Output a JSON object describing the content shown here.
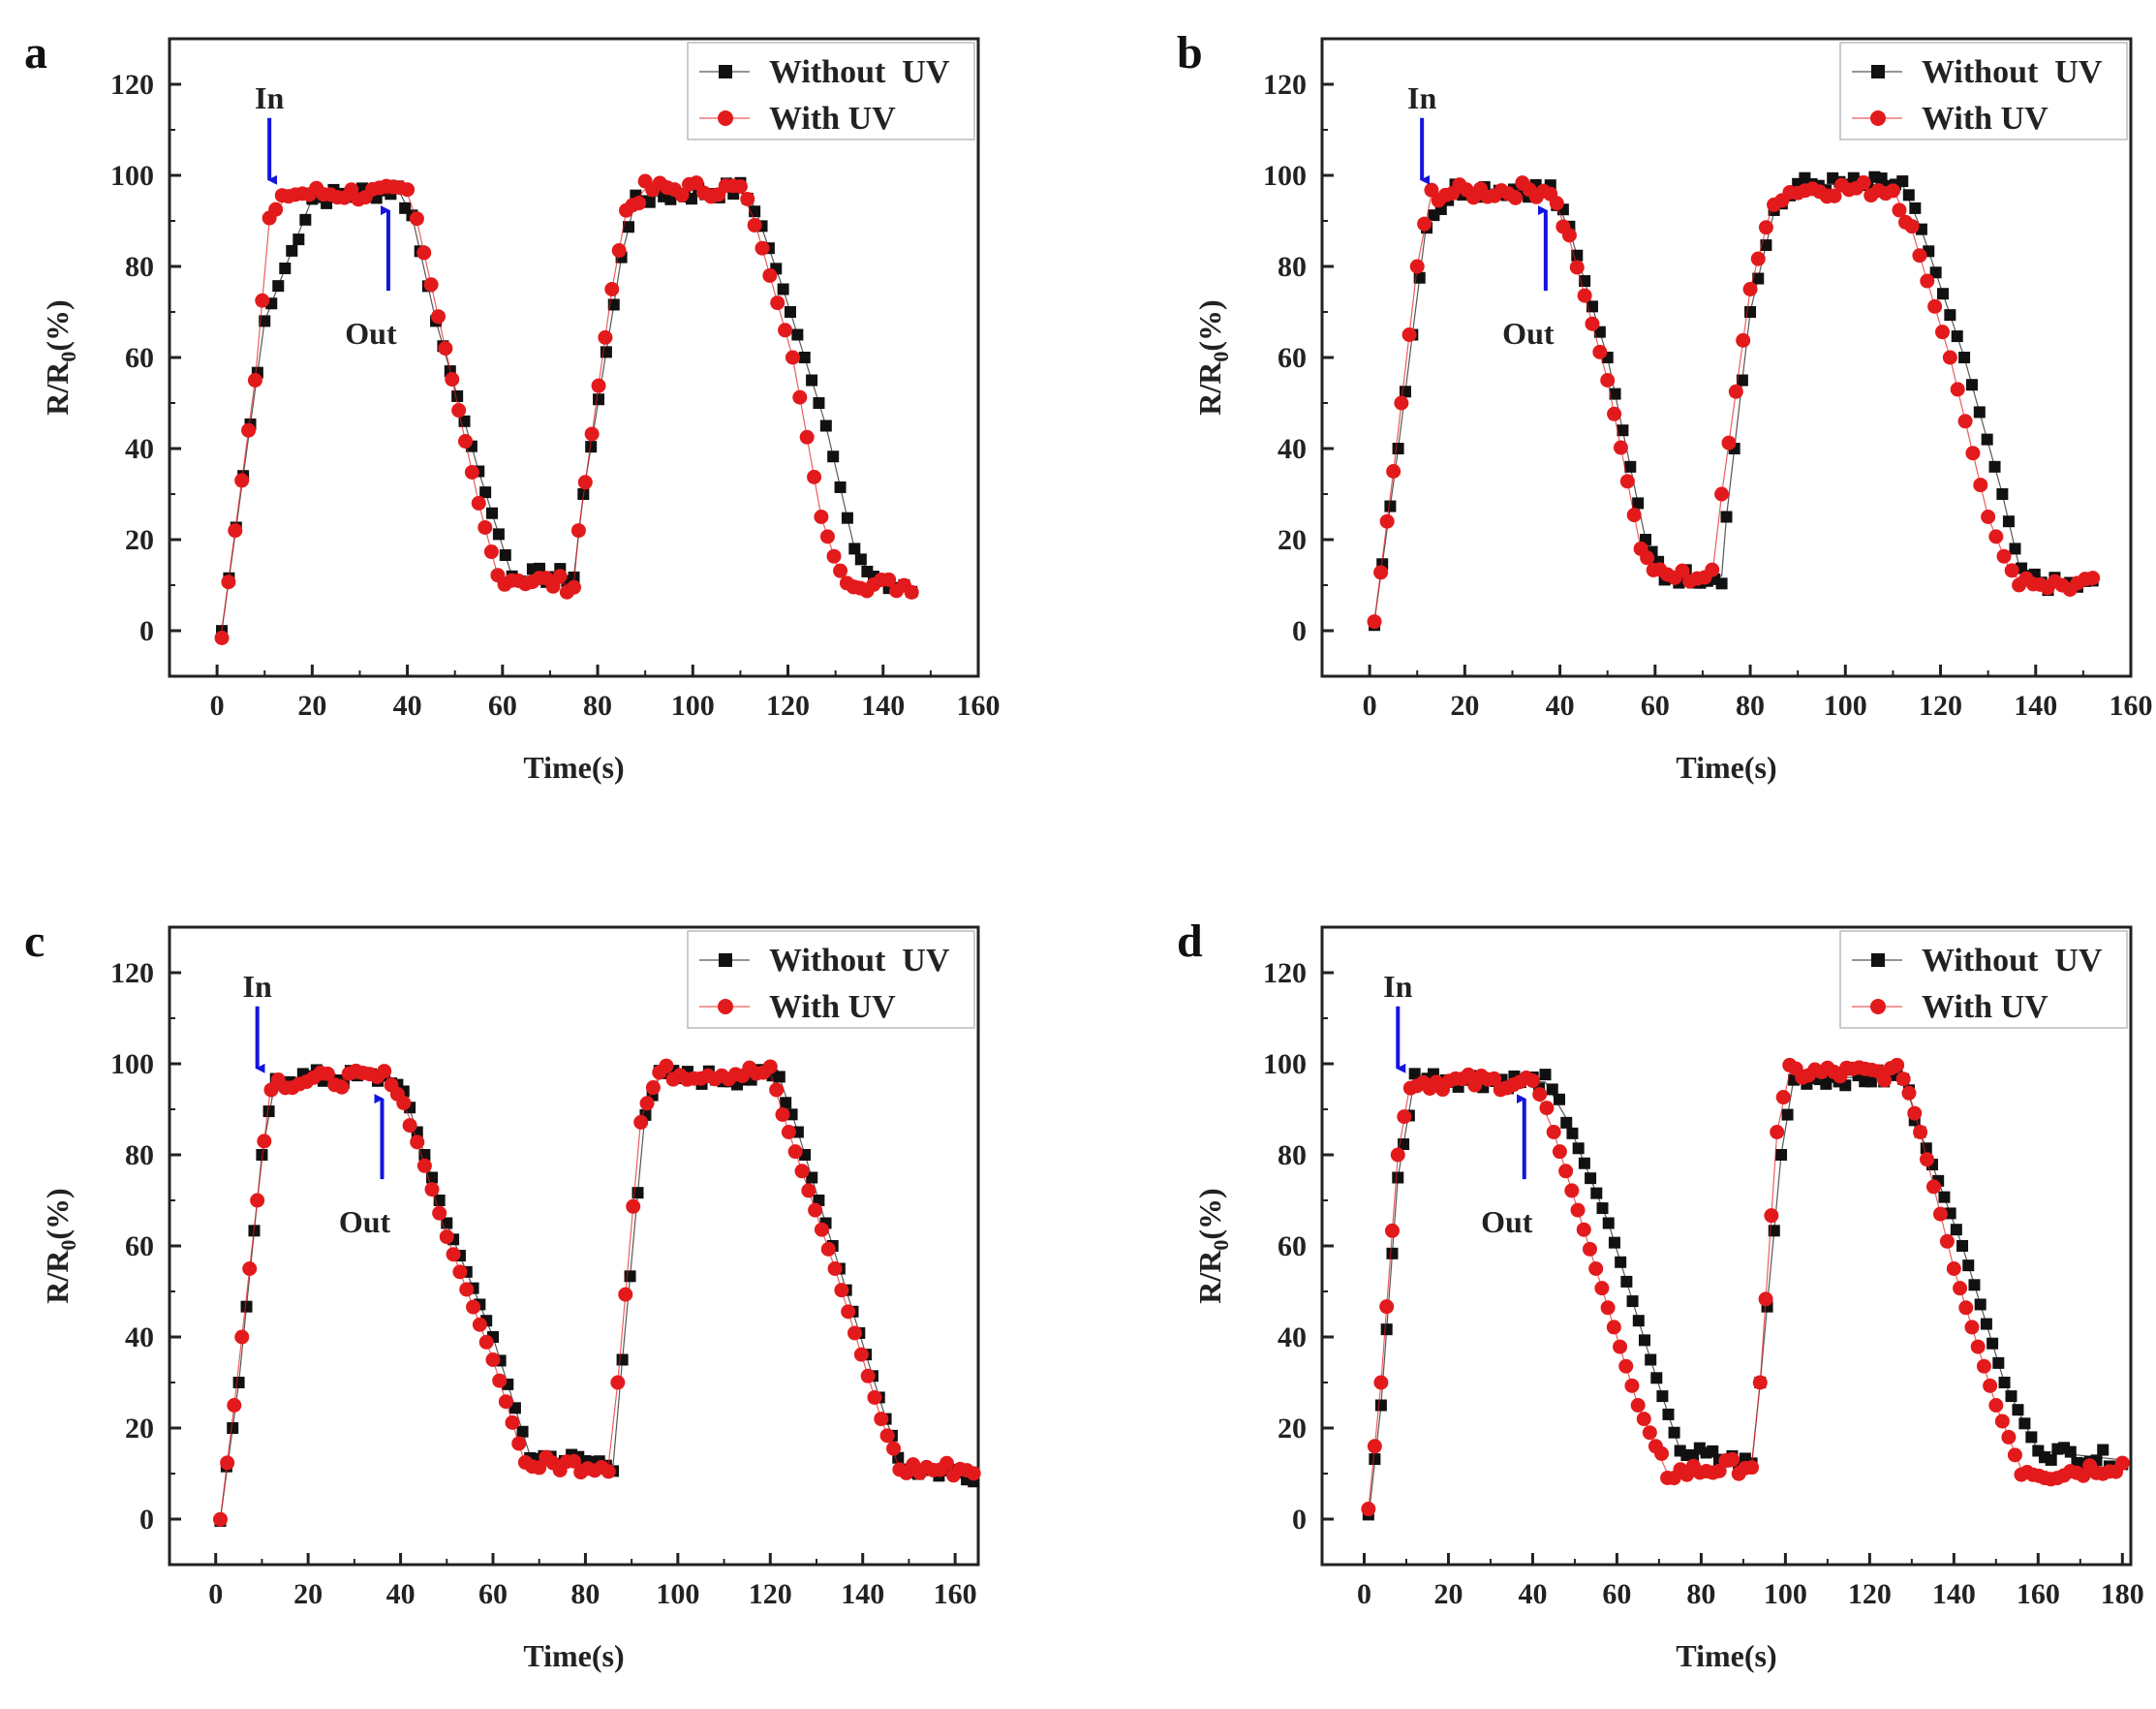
{
  "figure": {
    "legend_labels": [
      "Without  UV",
      "With UV"
    ],
    "annotation_in": "In",
    "annotation_out": "Out",
    "colors": {
      "without_uv": "#111111",
      "with_uv": "#e31a1c",
      "arrow": "#1414e0",
      "axis": "#222222"
    }
  },
  "chart_data": [
    {
      "panel": "a",
      "type": "scatter",
      "xlabel": "Time(s)",
      "ylabel": "R/R0(%)",
      "xlim": [
        -10,
        160
      ],
      "ylim": [
        -10,
        130
      ],
      "xticks": [
        0,
        20,
        40,
        60,
        80,
        100,
        120,
        140,
        160
      ],
      "yticks": [
        0,
        20,
        40,
        60,
        80,
        100,
        120
      ],
      "annotations": {
        "in": [
          11,
          96
        ],
        "out": [
          36,
          97
        ]
      },
      "series": [
        {
          "name": "Without  UV",
          "marker": "square",
          "points": [
            [
              1,
              0
            ],
            [
              10,
              68
            ],
            [
              20,
              95
            ],
            [
              38,
              97
            ],
            [
              41,
              91
            ],
            [
              46,
              68
            ],
            [
              55,
              35
            ],
            [
              62,
              12
            ],
            [
              75,
              12
            ],
            [
              77,
              30
            ],
            [
              85,
              82
            ],
            [
              88,
              95
            ],
            [
              110,
              97
            ],
            [
              113,
              93
            ],
            [
              119,
              75
            ],
            [
              128,
              45
            ],
            [
              134,
              18
            ],
            [
              138,
              11
            ],
            [
              146,
              10
            ]
          ]
        },
        {
          "name": "With UV",
          "marker": "circle",
          "points": [
            [
              1,
              0
            ],
            [
              8,
              55
            ],
            [
              11,
              90
            ],
            [
              15,
              96
            ],
            [
              40,
              96
            ],
            [
              42,
              90
            ],
            [
              48,
              62
            ],
            [
              55,
              28
            ],
            [
              59,
              12
            ],
            [
              75,
              10
            ],
            [
              76,
              22
            ],
            [
              83,
              75
            ],
            [
              86,
              92
            ],
            [
              90,
              97
            ],
            [
              110,
              97
            ],
            [
              113,
              90
            ],
            [
              121,
              60
            ],
            [
              127,
              25
            ],
            [
              131,
              12
            ],
            [
              138,
              10
            ],
            [
              146,
              10
            ]
          ]
        }
      ]
    },
    {
      "panel": "b",
      "type": "scatter",
      "xlabel": "Time(s)",
      "ylabel": "R/R0(%)",
      "xlim": [
        -10,
        160
      ],
      "ylim": [
        -10,
        130
      ],
      "xticks": [
        0,
        20,
        40,
        60,
        80,
        100,
        120,
        140,
        160
      ],
      "yticks": [
        0,
        20,
        40,
        60,
        80,
        100,
        120
      ],
      "annotations": {
        "in": [
          11,
          96
        ],
        "out": [
          37,
          97
        ]
      },
      "series": [
        {
          "name": "Without  UV",
          "marker": "square",
          "points": [
            [
              1,
              2
            ],
            [
              6,
              40
            ],
            [
              12,
              90
            ],
            [
              18,
              97
            ],
            [
              38,
              97
            ],
            [
              42,
              88
            ],
            [
              50,
              60
            ],
            [
              58,
              20
            ],
            [
              62,
              12
            ],
            [
              74,
              12
            ],
            [
              75,
              25
            ],
            [
              80,
              70
            ],
            [
              85,
              92
            ],
            [
              90,
              98
            ],
            [
              112,
              98
            ],
            [
              116,
              88
            ],
            [
              125,
              60
            ],
            [
              133,
              30
            ],
            [
              137,
              12
            ],
            [
              144,
              10
            ],
            [
              152,
              10
            ]
          ]
        },
        {
          "name": "With UV",
          "marker": "circle",
          "points": [
            [
              1,
              2
            ],
            [
              5,
              35
            ],
            [
              10,
              80
            ],
            [
              13,
              96
            ],
            [
              38,
              97
            ],
            [
              42,
              86
            ],
            [
              50,
              55
            ],
            [
              57,
              18
            ],
            [
              61,
              12
            ],
            [
              72,
              12
            ],
            [
              74,
              30
            ],
            [
              80,
              75
            ],
            [
              85,
              95
            ],
            [
              90,
              97
            ],
            [
              110,
              97
            ],
            [
              114,
              88
            ],
            [
              122,
              60
            ],
            [
              130,
              25
            ],
            [
              135,
              12
            ],
            [
              144,
              10
            ],
            [
              152,
              10
            ]
          ]
        }
      ]
    },
    {
      "panel": "c",
      "type": "scatter",
      "xlabel": "Time(s)",
      "ylabel": "R/R0(%)",
      "xlim": [
        -10,
        165
      ],
      "ylim": [
        -10,
        130
      ],
      "xticks": [
        0,
        20,
        40,
        60,
        80,
        100,
        120,
        140,
        160
      ],
      "yticks": [
        0,
        20,
        40,
        60,
        80,
        100,
        120
      ],
      "annotations": {
        "in": [
          9,
          96
        ],
        "out": [
          36,
          97
        ]
      },
      "series": [
        {
          "name": "Without  UV",
          "marker": "square",
          "points": [
            [
              1,
              0
            ],
            [
              5,
              30
            ],
            [
              10,
              80
            ],
            [
              13,
              97
            ],
            [
              38,
              97
            ],
            [
              42,
              90
            ],
            [
              50,
              65
            ],
            [
              60,
              40
            ],
            [
              68,
              14
            ],
            [
              86,
              12
            ],
            [
              88,
              35
            ],
            [
              93,
              90
            ],
            [
              96,
              97
            ],
            [
              122,
              97
            ],
            [
              126,
              85
            ],
            [
              135,
              55
            ],
            [
              145,
              22
            ],
            [
              149,
              11
            ],
            [
              164,
              10
            ]
          ]
        },
        {
          "name": "With UV",
          "marker": "circle",
          "points": [
            [
              1,
              0
            ],
            [
              4,
              25
            ],
            [
              9,
              70
            ],
            [
              12,
              96
            ],
            [
              38,
              97
            ],
            [
              42,
              88
            ],
            [
              50,
              62
            ],
            [
              60,
              35
            ],
            [
              67,
              12
            ],
            [
              85,
              12
            ],
            [
              87,
              30
            ],
            [
              92,
              88
            ],
            [
              96,
              98
            ],
            [
              120,
              98
            ],
            [
              124,
              85
            ],
            [
              134,
              55
            ],
            [
              144,
              22
            ],
            [
              148,
              11
            ],
            [
              164,
              11
            ]
          ]
        }
      ]
    },
    {
      "panel": "d",
      "type": "scatter",
      "xlabel": "Time(s)",
      "ylabel": "R/R0(%)",
      "xlim": [
        -10,
        182
      ],
      "ylim": [
        -10,
        130
      ],
      "xticks": [
        0,
        20,
        40,
        60,
        80,
        100,
        120,
        140,
        160,
        180
      ],
      "yticks": [
        0,
        20,
        40,
        60,
        80,
        100,
        120
      ],
      "annotations": {
        "in": [
          8,
          96
        ],
        "out": [
          38,
          97
        ]
      },
      "series": [
        {
          "name": "Without  UV",
          "marker": "square",
          "points": [
            [
              1,
              0
            ],
            [
              4,
              25
            ],
            [
              8,
              75
            ],
            [
              12,
              97
            ],
            [
              43,
              96
            ],
            [
              48,
              88
            ],
            [
              58,
              65
            ],
            [
              68,
              35
            ],
            [
              75,
              15
            ],
            [
              92,
              12
            ],
            [
              94,
              30
            ],
            [
              99,
              80
            ],
            [
              102,
              97
            ],
            [
              128,
              97
            ],
            [
              132,
              85
            ],
            [
              142,
              60
            ],
            [
              152,
              30
            ],
            [
              160,
              15
            ],
            [
              180,
              13
            ]
          ]
        },
        {
          "name": "With UV",
          "marker": "circle",
          "points": [
            [
              1,
              2
            ],
            [
              4,
              30
            ],
            [
              8,
              80
            ],
            [
              11,
              96
            ],
            [
              40,
              96
            ],
            [
              45,
              85
            ],
            [
              55,
              55
            ],
            [
              65,
              25
            ],
            [
              72,
              10
            ],
            [
              92,
              12
            ],
            [
              94,
              30
            ],
            [
              98,
              85
            ],
            [
              101,
              98
            ],
            [
              128,
              98
            ],
            [
              132,
              85
            ],
            [
              140,
              55
            ],
            [
              150,
              25
            ],
            [
              156,
              11
            ],
            [
              163,
              10
            ],
            [
              180,
              12
            ]
          ]
        }
      ]
    }
  ]
}
